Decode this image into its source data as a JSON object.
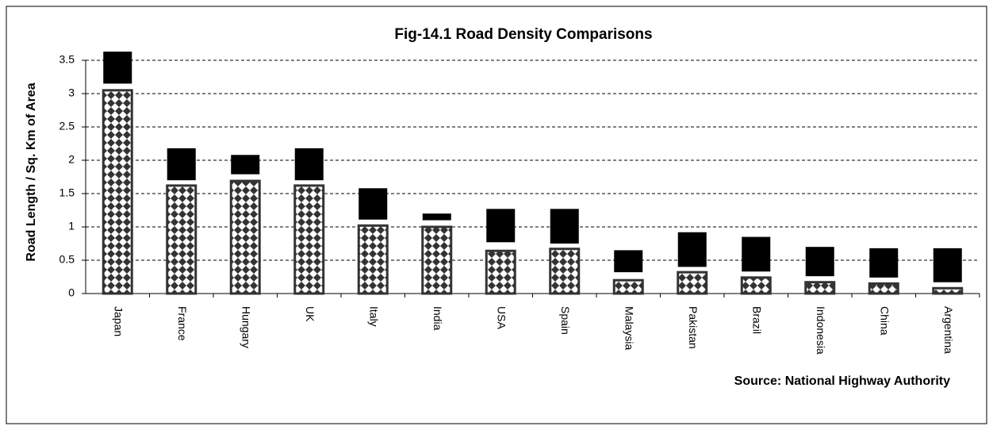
{
  "chart_data": {
    "type": "bar",
    "stacked": true,
    "title": "Fig-14.1    Road Density Comparisons",
    "y_label": "Road Length / Sq. Km of Area",
    "annotation": "Source: National Highway Authority",
    "categories": [
      "Japan",
      "France",
      "Hungary",
      "UK",
      "Italy",
      "India",
      "USA",
      "Spain",
      "Malaysia",
      "Pakistan",
      "Brazil",
      "Indonesia",
      "China",
      "Argentina"
    ],
    "series": [
      {
        "color": "#333333",
        "pattern": true,
        "values": [
          3.05,
          1.62,
          1.69,
          1.62,
          1.02,
          1.0,
          0.64,
          0.67,
          0.2,
          0.32,
          0.24,
          0.17,
          0.15,
          0.08
        ]
      },
      {
        "color": "none",
        "values": [
          0.1,
          0.08,
          0.1,
          0.08,
          0.09,
          0.1,
          0.13,
          0.08,
          0.12,
          0.08,
          0.09,
          0.09,
          0.09,
          0.09
        ]
      },
      {
        "color": "#000000",
        "values": [
          0.48,
          0.48,
          0.29,
          0.48,
          0.47,
          0.1,
          0.5,
          0.52,
          0.33,
          0.52,
          0.52,
          0.44,
          0.44,
          0.51
        ]
      }
    ],
    "ylim": [
      0,
      3.5
    ],
    "yticks": [
      0,
      0.5,
      1,
      1.5,
      2,
      2.5,
      3,
      3.5
    ],
    "grid": true
  }
}
